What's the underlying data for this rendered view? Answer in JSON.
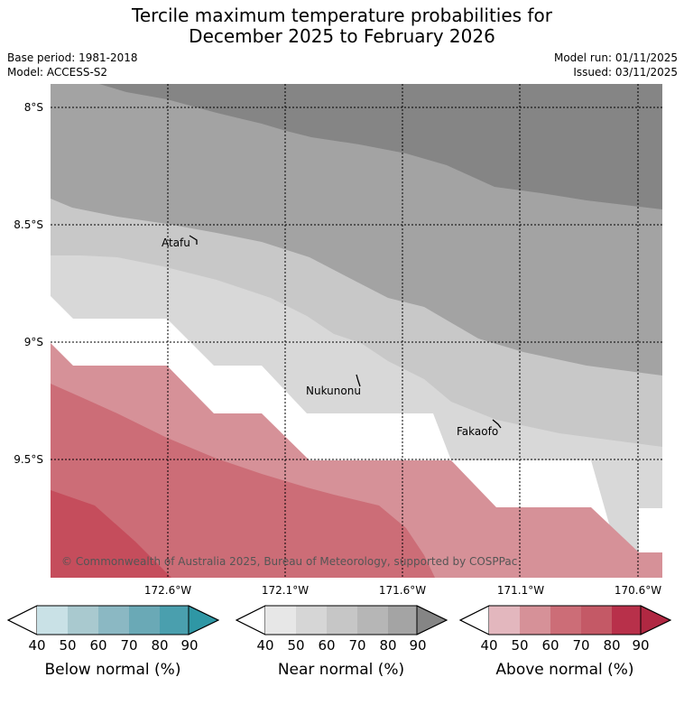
{
  "title": {
    "line1": "Tercile maximum temperature probabilities for",
    "line2": "December 2025 to February 2026"
  },
  "info": {
    "base_period": "Base period: 1981-2018",
    "model": "Model: ACCESS-S2",
    "model_run": "Model run: 01/11/2025",
    "issued": "Issued: 03/11/2025"
  },
  "map": {
    "lat_labels": [
      "8°S",
      "8.5°S",
      "9°S",
      "9.5°S"
    ],
    "lon_labels": [
      "172.6°W",
      "172.1°W",
      "171.6°W",
      "171.1°W",
      "170.6°W"
    ],
    "places": [
      "Atafu",
      "Nukunonu",
      "Fakaofo"
    ],
    "copyright": "© Commonwealth of Australia 2025, Bureau of Meteorology, supported by COSPPac"
  },
  "legend": {
    "ticks": [
      "40",
      "50",
      "60",
      "70",
      "80",
      "90"
    ],
    "below": {
      "label": "Below normal (%)",
      "colors": [
        "#c9e1e6",
        "#a9c9cf",
        "#8bb8c3",
        "#6aa9b6",
        "#4a9fae",
        "#2f97a5"
      ]
    },
    "near": {
      "label": "Near normal (%)",
      "colors": [
        "#e7e7e7",
        "#d6d6d6",
        "#c6c6c6",
        "#b6b6b6",
        "#a4a4a4",
        "#858585"
      ]
    },
    "above": {
      "label": "Above normal (%)",
      "colors": [
        "#e3b7be",
        "#d69198",
        "#cc6d77",
        "#c45966",
        "#b8304a",
        "#b02842"
      ]
    }
  }
}
